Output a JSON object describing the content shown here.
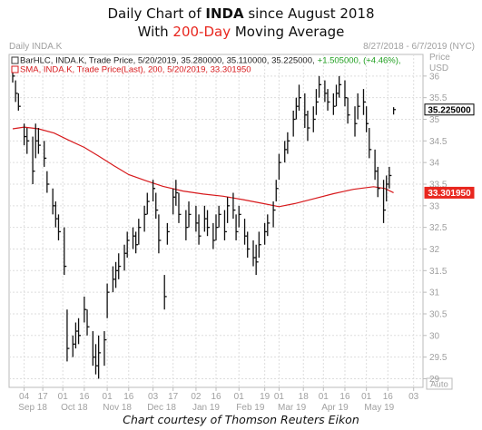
{
  "title": {
    "line1_prefix": "Daily Chart of ",
    "line1_bold": "INDA",
    "line1_suffix": " since August 2018",
    "line2_prefix": "With ",
    "line2_red": "200-Day",
    "line2_suffix": " Moving Average"
  },
  "header": {
    "symbol": "Daily INDA.K",
    "date_range": "8/27/2018 - 6/7/2019 (NYC)",
    "price_label": "Price",
    "currency_label": "USD",
    "auto_label": "Auto"
  },
  "legend": [
    {
      "text_main": "BarHLC, INDA.K, Trade Price, 5/20/2019, 35.280000, 35.110000, 35.225000,",
      "text_change": "+1.505000, (+4.46%),",
      "color": "#222222",
      "change_color": "#1e9e1e"
    },
    {
      "text_main": "SMA, INDA.K, Trade Price(Last), 200, 5/20/2019, 33.301950",
      "color": "#d7191c"
    }
  ],
  "price_tags": [
    {
      "text": "35.225000",
      "value": 35.225,
      "bg": "#ffffff",
      "fg": "#000000",
      "border": "#000000"
    },
    {
      "text": "33.301950",
      "value": 33.30195,
      "bg": "#e8271f",
      "fg": "#ffffff",
      "border": "#e8271f"
    }
  ],
  "credit": "Chart courtesy of Thomson Reuters Eikon",
  "chart_data": {
    "type": "bar",
    "style": "HLC bars with 200-day SMA overlay",
    "ylim": [
      28.8,
      36.5
    ],
    "y_ticks": [
      29,
      29.5,
      30,
      30.5,
      31,
      31.5,
      32,
      32.5,
      33,
      33.5,
      34,
      34.5,
      35,
      35.5,
      36
    ],
    "y_tick_labels": [
      "29",
      "29.5",
      "30",
      "30.5",
      "31",
      "31.5",
      "32",
      "32.5",
      "33",
      "33.5",
      "34",
      "34.5",
      "35",
      "35.5",
      "36"
    ],
    "x_start": "2018-08-27",
    "x_end": "2019-06-07",
    "x_ticks": [
      {
        "date": "2018-09-04",
        "label": "04"
      },
      {
        "date": "2018-09-17",
        "label": "17"
      },
      {
        "date": "2018-10-01",
        "label": "01"
      },
      {
        "date": "2018-10-16",
        "label": "16"
      },
      {
        "date": "2018-11-01",
        "label": "01"
      },
      {
        "date": "2018-11-16",
        "label": "16"
      },
      {
        "date": "2018-12-03",
        "label": "03"
      },
      {
        "date": "2018-12-17",
        "label": "17"
      },
      {
        "date": "2019-01-02",
        "label": "02"
      },
      {
        "date": "2019-01-16",
        "label": "16"
      },
      {
        "date": "2019-02-01",
        "label": "01"
      },
      {
        "date": "2019-02-19",
        "label": "19"
      },
      {
        "date": "2019-03-01",
        "label": "01"
      },
      {
        "date": "2019-03-18",
        "label": "18"
      },
      {
        "date": "2019-04-01",
        "label": "01"
      },
      {
        "date": "2019-04-16",
        "label": "16"
      },
      {
        "date": "2019-05-01",
        "label": "01"
      },
      {
        "date": "2019-05-16",
        "label": "16"
      },
      {
        "date": "2019-06-03",
        "label": "03"
      }
    ],
    "x_month_labels": [
      {
        "label": "Sep 18",
        "date": "2018-09-10"
      },
      {
        "label": "Oct 18",
        "date": "2018-10-09"
      },
      {
        "label": "Nov 18",
        "date": "2018-11-08"
      },
      {
        "label": "Dec 18",
        "date": "2018-12-09"
      },
      {
        "label": "Jan 19",
        "date": "2019-01-09"
      },
      {
        "label": "Feb 19",
        "date": "2019-02-09"
      },
      {
        "label": "Mar 19",
        "date": "2019-03-10"
      },
      {
        "label": "Apr 19",
        "date": "2019-04-09"
      },
      {
        "label": "May 19",
        "date": "2019-05-10"
      }
    ],
    "bar_width_days": 1,
    "series": [
      {
        "name": "BarHLC, INDA.K, Trade Price",
        "color": "#111111",
        "points": [
          {
            "x": "2018-08-27",
            "h": 36.15,
            "l": 35.85,
            "c": 36.0
          },
          {
            "x": "2018-08-29",
            "h": 35.9,
            "l": 35.4,
            "c": 35.6
          },
          {
            "x": "2018-08-31",
            "h": 35.6,
            "l": 35.2,
            "c": 35.3
          },
          {
            "x": "2018-09-04",
            "h": 34.9,
            "l": 34.4,
            "c": 34.6
          },
          {
            "x": "2018-09-06",
            "h": 34.8,
            "l": 34.2,
            "c": 34.5
          },
          {
            "x": "2018-09-10",
            "h": 34.6,
            "l": 33.5,
            "c": 33.8
          },
          {
            "x": "2018-09-12",
            "h": 34.9,
            "l": 34.1,
            "c": 34.5
          },
          {
            "x": "2018-09-14",
            "h": 34.8,
            "l": 34.2,
            "c": 34.4
          },
          {
            "x": "2018-09-18",
            "h": 34.5,
            "l": 33.9,
            "c": 34.1
          },
          {
            "x": "2018-09-20",
            "h": 33.8,
            "l": 33.3,
            "c": 33.5
          },
          {
            "x": "2018-09-24",
            "h": 33.4,
            "l": 32.8,
            "c": 33.0
          },
          {
            "x": "2018-09-26",
            "h": 33.1,
            "l": 32.5,
            "c": 32.7
          },
          {
            "x": "2018-09-28",
            "h": 32.8,
            "l": 32.2,
            "c": 32.4
          },
          {
            "x": "2018-10-02",
            "h": 32.5,
            "l": 31.4,
            "c": 31.6
          },
          {
            "x": "2018-10-04",
            "h": 30.6,
            "l": 29.4,
            "c": 29.7
          },
          {
            "x": "2018-10-08",
            "h": 30.0,
            "l": 29.5,
            "c": 29.8
          },
          {
            "x": "2018-10-10",
            "h": 30.3,
            "l": 29.7,
            "c": 30.1
          },
          {
            "x": "2018-10-12",
            "h": 30.4,
            "l": 29.8,
            "c": 30.0
          },
          {
            "x": "2018-10-16",
            "h": 30.9,
            "l": 30.3,
            "c": 30.6
          },
          {
            "x": "2018-10-18",
            "h": 30.6,
            "l": 30.0,
            "c": 30.2
          },
          {
            "x": "2018-10-22",
            "h": 30.1,
            "l": 29.3,
            "c": 29.5
          },
          {
            "x": "2018-10-24",
            "h": 29.8,
            "l": 29.1,
            "c": 29.3
          },
          {
            "x": "2018-10-26",
            "h": 30.0,
            "l": 29.0,
            "c": 29.6
          },
          {
            "x": "2018-10-30",
            "h": 30.1,
            "l": 29.3,
            "c": 29.9
          },
          {
            "x": "2018-11-01",
            "h": 31.2,
            "l": 30.4,
            "c": 31.0
          },
          {
            "x": "2018-11-05",
            "h": 31.6,
            "l": 31.0,
            "c": 31.3
          },
          {
            "x": "2018-11-07",
            "h": 31.7,
            "l": 31.1,
            "c": 31.5
          },
          {
            "x": "2018-11-09",
            "h": 31.9,
            "l": 31.3,
            "c": 31.6
          },
          {
            "x": "2018-11-13",
            "h": 32.1,
            "l": 31.5,
            "c": 31.9
          },
          {
            "x": "2018-11-15",
            "h": 32.4,
            "l": 31.8,
            "c": 32.2
          },
          {
            "x": "2018-11-19",
            "h": 32.5,
            "l": 32.0,
            "c": 32.3
          },
          {
            "x": "2018-11-21",
            "h": 32.4,
            "l": 31.9,
            "c": 32.1
          },
          {
            "x": "2018-11-23",
            "h": 32.7,
            "l": 32.1,
            "c": 32.5
          },
          {
            "x": "2018-11-27",
            "h": 33.0,
            "l": 32.4,
            "c": 32.8
          },
          {
            "x": "2018-11-29",
            "h": 33.3,
            "l": 32.8,
            "c": 33.1
          },
          {
            "x": "2018-12-03",
            "h": 33.6,
            "l": 33.1,
            "c": 33.4
          },
          {
            "x": "2018-12-05",
            "h": 33.3,
            "l": 32.7,
            "c": 32.9
          },
          {
            "x": "2018-12-07",
            "h": 32.8,
            "l": 31.9,
            "c": 32.2
          },
          {
            "x": "2018-12-11",
            "h": 31.4,
            "l": 30.6,
            "c": 30.9
          },
          {
            "x": "2018-12-13",
            "h": 32.6,
            "l": 32.1,
            "c": 32.4
          },
          {
            "x": "2018-12-17",
            "h": 33.4,
            "l": 32.8,
            "c": 33.2
          },
          {
            "x": "2018-12-19",
            "h": 33.6,
            "l": 33.0,
            "c": 33.3
          },
          {
            "x": "2018-12-21",
            "h": 33.3,
            "l": 32.6,
            "c": 32.8
          },
          {
            "x": "2018-12-26",
            "h": 32.9,
            "l": 32.2,
            "c": 32.5
          },
          {
            "x": "2018-12-28",
            "h": 33.1,
            "l": 32.5,
            "c": 32.8
          },
          {
            "x": "2019-01-02",
            "h": 33.0,
            "l": 32.4,
            "c": 32.6
          },
          {
            "x": "2019-01-04",
            "h": 32.8,
            "l": 32.1,
            "c": 32.3
          },
          {
            "x": "2019-01-08",
            "h": 33.0,
            "l": 32.4,
            "c": 32.7
          },
          {
            "x": "2019-01-10",
            "h": 32.9,
            "l": 32.3,
            "c": 32.5
          },
          {
            "x": "2019-01-14",
            "h": 32.6,
            "l": 32.0,
            "c": 32.2
          },
          {
            "x": "2019-01-16",
            "h": 32.8,
            "l": 32.2,
            "c": 32.5
          },
          {
            "x": "2019-01-18",
            "h": 33.0,
            "l": 32.5,
            "c": 32.8
          },
          {
            "x": "2019-01-22",
            "h": 32.9,
            "l": 32.2,
            "c": 32.4
          },
          {
            "x": "2019-01-24",
            "h": 33.2,
            "l": 32.6,
            "c": 33.0
          },
          {
            "x": "2019-01-28",
            "h": 33.3,
            "l": 32.7,
            "c": 32.9
          },
          {
            "x": "2019-01-30",
            "h": 32.8,
            "l": 32.2,
            "c": 32.4
          },
          {
            "x": "2019-02-01",
            "h": 33.0,
            "l": 32.5,
            "c": 32.8
          },
          {
            "x": "2019-02-05",
            "h": 32.7,
            "l": 32.1,
            "c": 32.3
          },
          {
            "x": "2019-02-07",
            "h": 32.4,
            "l": 31.8,
            "c": 32.0
          },
          {
            "x": "2019-02-11",
            "h": 32.2,
            "l": 31.6,
            "c": 31.8
          },
          {
            "x": "2019-02-13",
            "h": 32.1,
            "l": 31.4,
            "c": 31.7
          },
          {
            "x": "2019-02-15",
            "h": 32.4,
            "l": 31.8,
            "c": 32.1
          },
          {
            "x": "2019-02-19",
            "h": 32.6,
            "l": 32.1,
            "c": 32.4
          },
          {
            "x": "2019-02-21",
            "h": 32.8,
            "l": 32.3,
            "c": 32.6
          },
          {
            "x": "2019-02-25",
            "h": 33.1,
            "l": 32.5,
            "c": 32.9
          },
          {
            "x": "2019-02-27",
            "h": 33.6,
            "l": 33.1,
            "c": 33.4
          },
          {
            "x": "2019-03-01",
            "h": 34.2,
            "l": 33.6,
            "c": 34.0
          },
          {
            "x": "2019-03-05",
            "h": 34.5,
            "l": 34.0,
            "c": 34.3
          },
          {
            "x": "2019-03-07",
            "h": 34.7,
            "l": 34.2,
            "c": 34.5
          },
          {
            "x": "2019-03-11",
            "h": 35.2,
            "l": 34.6,
            "c": 35.0
          },
          {
            "x": "2019-03-13",
            "h": 35.5,
            "l": 35.0,
            "c": 35.3
          },
          {
            "x": "2019-03-15",
            "h": 35.8,
            "l": 35.2,
            "c": 35.5
          },
          {
            "x": "2019-03-19",
            "h": 35.6,
            "l": 34.8,
            "c": 35.1
          },
          {
            "x": "2019-03-21",
            "h": 35.2,
            "l": 34.5,
            "c": 34.8
          },
          {
            "x": "2019-03-25",
            "h": 35.3,
            "l": 34.7,
            "c": 35.0
          },
          {
            "x": "2019-03-27",
            "h": 35.7,
            "l": 35.1,
            "c": 35.4
          },
          {
            "x": "2019-03-29",
            "h": 36.0,
            "l": 35.5,
            "c": 35.8
          },
          {
            "x": "2019-04-02",
            "h": 35.9,
            "l": 35.4,
            "c": 35.6
          },
          {
            "x": "2019-04-04",
            "h": 35.7,
            "l": 35.2,
            "c": 35.4
          },
          {
            "x": "2019-04-08",
            "h": 35.6,
            "l": 35.1,
            "c": 35.3
          },
          {
            "x": "2019-04-10",
            "h": 35.8,
            "l": 35.3,
            "c": 35.6
          },
          {
            "x": "2019-04-12",
            "h": 36.0,
            "l": 35.5,
            "c": 35.8
          },
          {
            "x": "2019-04-16",
            "h": 35.9,
            "l": 35.3,
            "c": 35.5
          },
          {
            "x": "2019-04-18",
            "h": 35.5,
            "l": 34.9,
            "c": 35.1
          },
          {
            "x": "2019-04-23",
            "h": 35.3,
            "l": 34.6,
            "c": 34.9
          },
          {
            "x": "2019-04-25",
            "h": 35.6,
            "l": 35.0,
            "c": 35.3
          },
          {
            "x": "2019-04-29",
            "h": 35.7,
            "l": 35.1,
            "c": 35.4
          },
          {
            "x": "2019-05-01",
            "h": 35.3,
            "l": 34.7,
            "c": 34.9
          },
          {
            "x": "2019-05-03",
            "h": 34.8,
            "l": 34.1,
            "c": 34.3
          },
          {
            "x": "2019-05-07",
            "h": 34.3,
            "l": 33.6,
            "c": 33.8
          },
          {
            "x": "2019-05-09",
            "h": 33.9,
            "l": 33.2,
            "c": 33.4
          },
          {
            "x": "2019-05-13",
            "h": 33.6,
            "l": 32.6,
            "c": 32.9
          },
          {
            "x": "2019-05-15",
            "h": 33.7,
            "l": 33.1,
            "c": 33.5
          },
          {
            "x": "2019-05-17",
            "h": 33.9,
            "l": 33.4,
            "c": 33.7
          },
          {
            "x": "2019-05-20",
            "h": 35.28,
            "l": 35.11,
            "c": 35.225
          }
        ]
      },
      {
        "name": "SMA, INDA.K, Trade Price(Last), 200",
        "color": "#d7191c",
        "points": [
          {
            "x": "2018-08-27",
            "y": 34.78
          },
          {
            "x": "2018-09-04",
            "y": 34.82
          },
          {
            "x": "2018-09-14",
            "y": 34.78
          },
          {
            "x": "2018-09-25",
            "y": 34.68
          },
          {
            "x": "2018-10-05",
            "y": 34.52
          },
          {
            "x": "2018-10-16",
            "y": 34.35
          },
          {
            "x": "2018-10-26",
            "y": 34.15
          },
          {
            "x": "2018-11-06",
            "y": 33.92
          },
          {
            "x": "2018-11-16",
            "y": 33.72
          },
          {
            "x": "2018-11-28",
            "y": 33.58
          },
          {
            "x": "2018-12-10",
            "y": 33.45
          },
          {
            "x": "2018-12-24",
            "y": 33.34
          },
          {
            "x": "2019-01-07",
            "y": 33.27
          },
          {
            "x": "2019-01-21",
            "y": 33.22
          },
          {
            "x": "2019-02-04",
            "y": 33.14
          },
          {
            "x": "2019-02-18",
            "y": 33.05
          },
          {
            "x": "2019-03-01",
            "y": 32.98
          },
          {
            "x": "2019-03-12",
            "y": 33.05
          },
          {
            "x": "2019-03-25",
            "y": 33.16
          },
          {
            "x": "2019-04-08",
            "y": 33.28
          },
          {
            "x": "2019-04-22",
            "y": 33.38
          },
          {
            "x": "2019-05-06",
            "y": 33.44
          },
          {
            "x": "2019-05-14",
            "y": 33.4
          },
          {
            "x": "2019-05-20",
            "y": 33.30195
          }
        ]
      }
    ]
  }
}
